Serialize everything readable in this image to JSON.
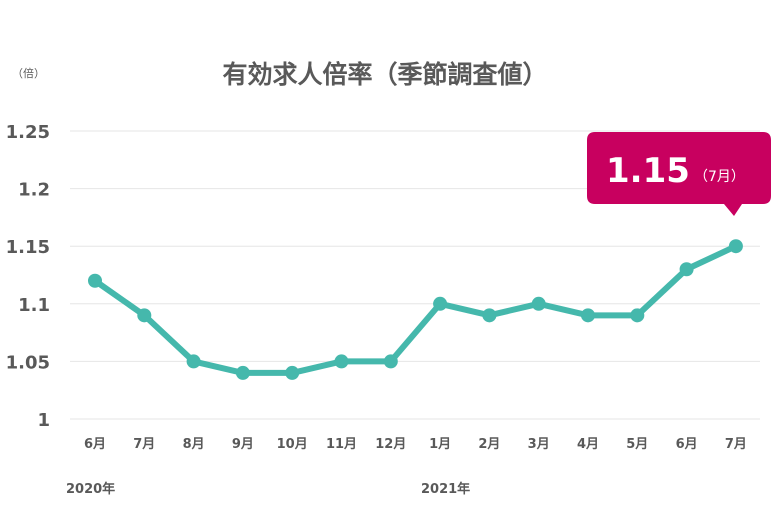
{
  "chart_data": {
    "type": "line",
    "title": "有効求人倍率（季節調査値）",
    "unit_label": "（倍）",
    "ylim": [
      1,
      1.25
    ],
    "yticks": [
      "1",
      "1.05",
      "1.1",
      "1.15",
      "1.2",
      "1.25"
    ],
    "yticks_values": [
      1,
      1.05,
      1.1,
      1.15,
      1.2,
      1.25
    ],
    "grid": true,
    "categories": [
      "6月",
      "7月",
      "8月",
      "9月",
      "10月",
      "11月",
      "12月",
      "1月",
      "2月",
      "3月",
      "4月",
      "5月",
      "6月",
      "7月"
    ],
    "year_labels": [
      "2020年",
      "2021年"
    ],
    "series": [
      {
        "values": [
          1.12,
          1.09,
          1.05,
          1.04,
          1.04,
          1.05,
          1.05,
          1.1,
          1.09,
          1.1,
          1.09,
          1.09,
          1.13,
          1.15
        ]
      }
    ],
    "callout": {
      "value": "1.15",
      "month": "（7月）"
    },
    "colors": {
      "line": "#45b8ac",
      "callout": "#c8005f",
      "text": "#595959",
      "grid": "#e6e6e6"
    }
  }
}
